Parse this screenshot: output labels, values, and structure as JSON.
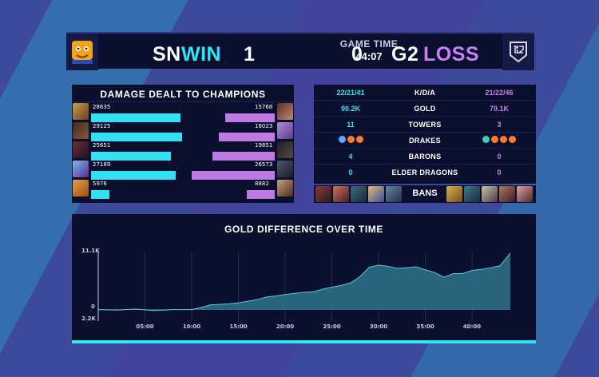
{
  "header": {
    "team_left": "SN",
    "result_left": "WIN",
    "score_left": "1",
    "game_time_label": "GAME TIME",
    "game_time": "44:07",
    "score_right": "0",
    "team_right": "G2",
    "result_right": "LOSS"
  },
  "damage": {
    "title": "DAMAGE DEALT TO CHAMPIONS",
    "rows": [
      {
        "left": "28635",
        "right": "15768"
      },
      {
        "left": "29125",
        "right": "18023"
      },
      {
        "left": "25651",
        "right": "19851"
      },
      {
        "left": "27189",
        "right": "26573"
      },
      {
        "left": "5976",
        "right": "8882"
      }
    ]
  },
  "stats": {
    "rows": [
      {
        "label": "K/D/A",
        "left": "22/21/41",
        "right": "21/22/46"
      },
      {
        "label": "GOLD",
        "left": "90.2K",
        "right": "79.1K"
      },
      {
        "label": "TOWERS",
        "left": "11",
        "right": "3"
      },
      {
        "label": "DRAKES",
        "left": "",
        "right": ""
      },
      {
        "label": "BARONS",
        "left": "4",
        "right": "0"
      },
      {
        "label": "ELDER DRAGONS",
        "left": "0",
        "right": "0"
      }
    ],
    "drakes_left": [
      "cloud",
      "infernal",
      "infernal"
    ],
    "drakes_right": [
      "ocean",
      "infernal",
      "infernal",
      "infernal"
    ]
  },
  "bans": {
    "label": "BANS"
  },
  "colors": {
    "blue_side": "#2ee7f5",
    "red_side": "#cd7ff7",
    "panel": "#0b0f2e"
  },
  "chart_data": {
    "type": "area",
    "title": "GOLD DIFFERENCE OVER TIME",
    "y_ticks": [
      "11.1K",
      "0",
      "2.2K"
    ],
    "ylim": [
      -2.2,
      11.1
    ],
    "x_ticks": [
      "05:00",
      "10:00",
      "15:00",
      "20:00",
      "25:00",
      "30:00",
      "35:00",
      "40:00"
    ],
    "x_tick_values": [
      5,
      10,
      15,
      20,
      25,
      30,
      35,
      40
    ],
    "xlim": [
      0,
      44.1
    ],
    "series": [
      {
        "x": [
          0,
          2,
          4,
          6,
          8,
          10,
          11,
          12,
          13,
          14,
          15,
          16,
          17,
          18,
          19,
          20,
          21,
          22,
          23,
          24,
          25,
          26,
          27,
          28,
          29,
          30,
          31,
          32,
          33,
          34,
          35,
          36,
          37,
          38,
          39,
          40,
          41,
          42,
          43,
          44.1
        ],
        "values": [
          0,
          -0.1,
          0.1,
          -0.2,
          0,
          0,
          0.4,
          0.9,
          1.0,
          1.1,
          1.3,
          1.6,
          1.9,
          2.4,
          2.6,
          2.9,
          3.1,
          3.3,
          3.4,
          3.9,
          4.3,
          4.6,
          5.1,
          6.3,
          8.1,
          8.5,
          8.3,
          7.9,
          8.0,
          8.2,
          7.6,
          7.1,
          6.2,
          6.9,
          6.9,
          7.5,
          7.7,
          8.0,
          8.4,
          10.8
        ]
      }
    ]
  }
}
